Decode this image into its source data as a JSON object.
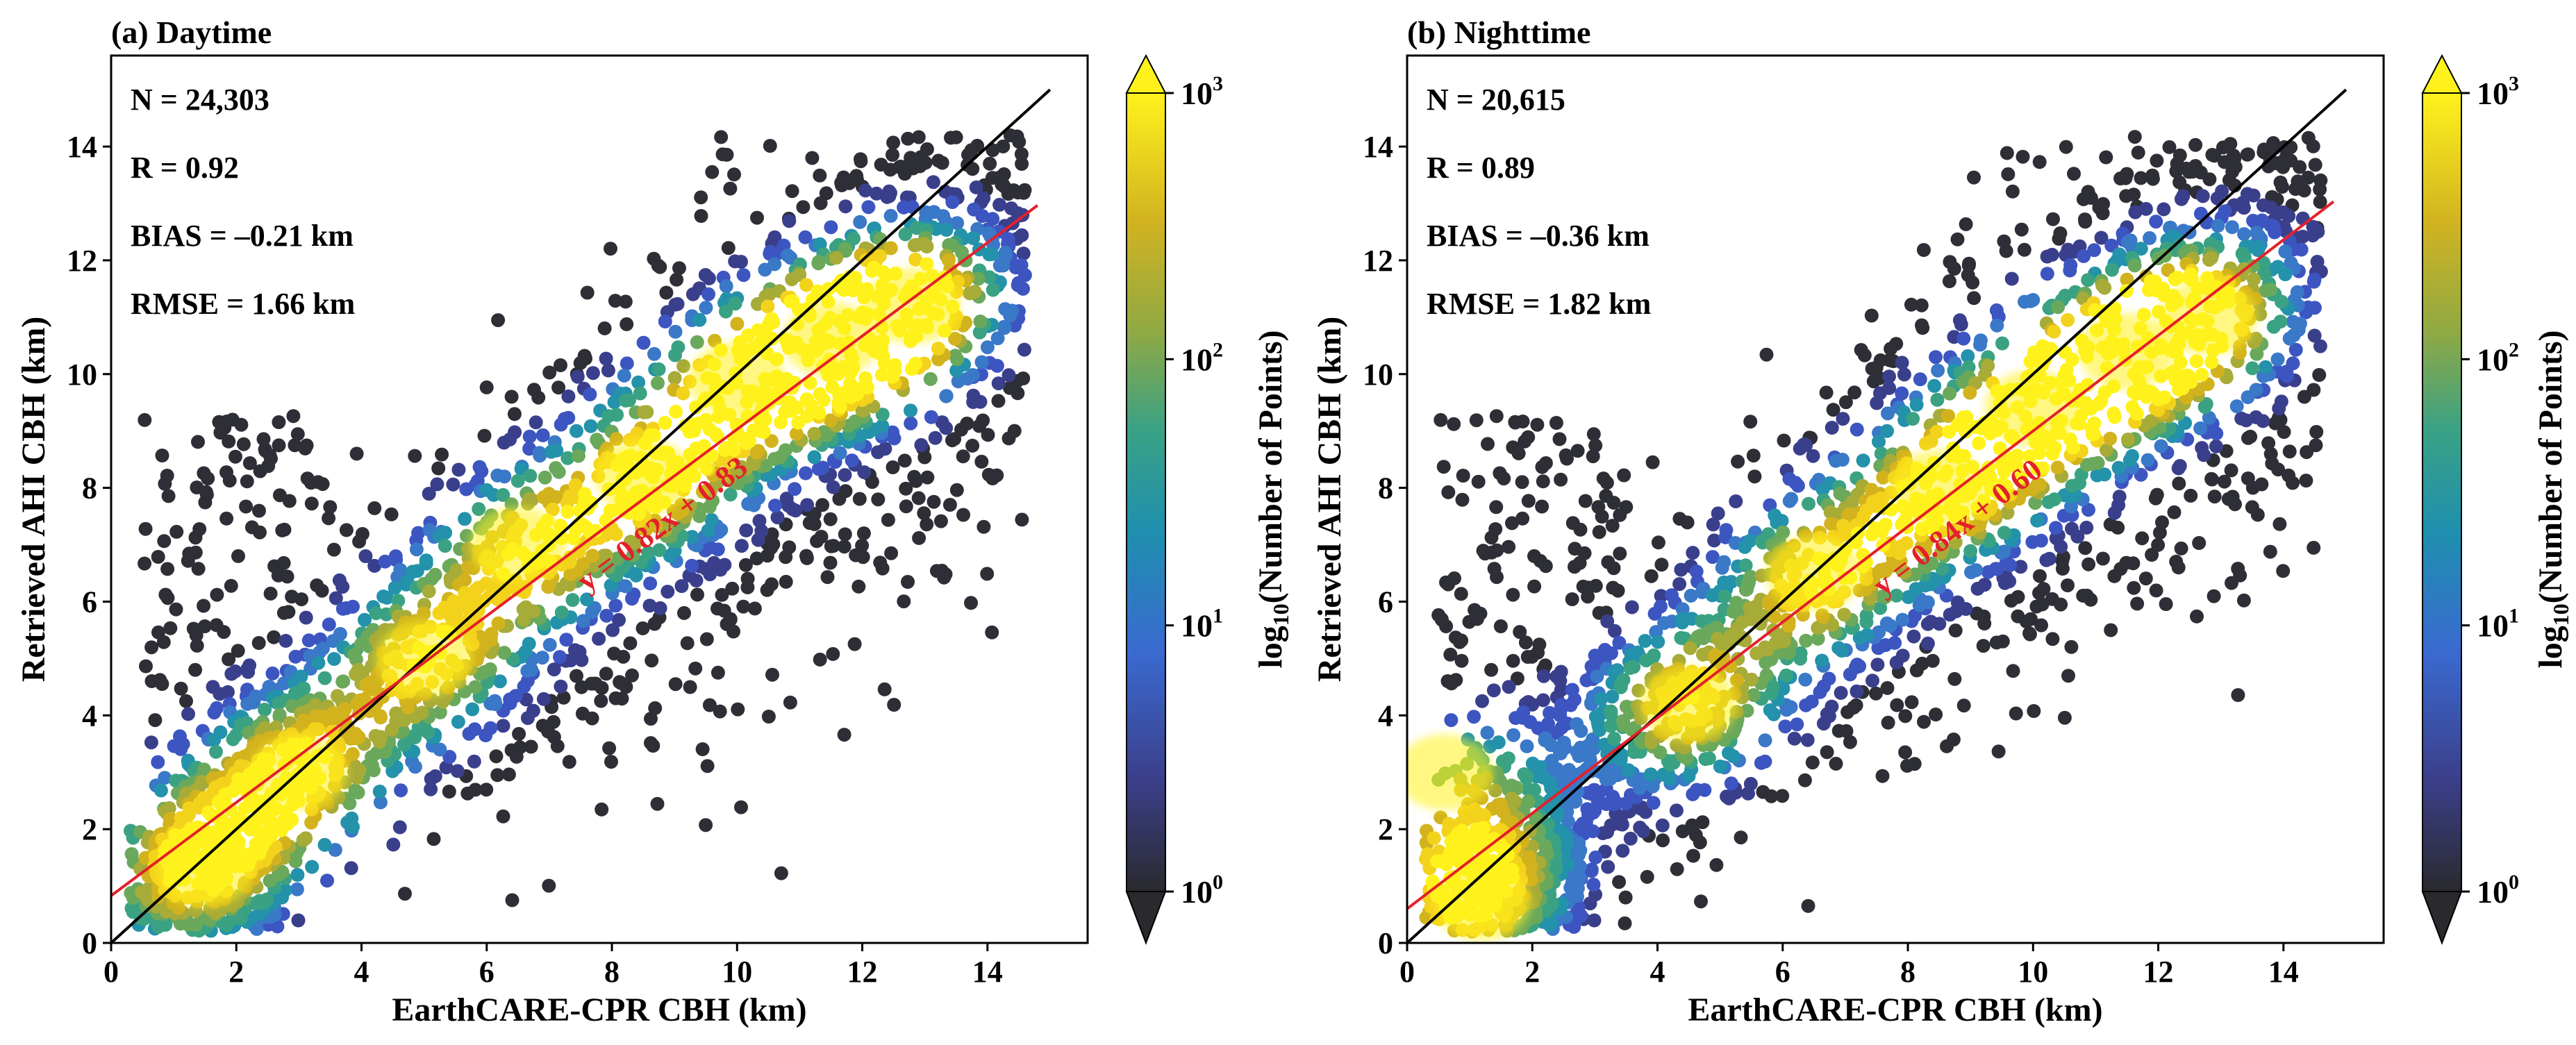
{
  "chart_data": [
    {
      "type": "scatter",
      "panel": "(a) Daytime",
      "title": "(a) Daytime",
      "xlabel": "EarthCARE-CPR CBH (km)",
      "ylabel": "Retrieved AHI CBH (km)",
      "xlim": [
        0,
        15.6
      ],
      "ylim": [
        0,
        15.6
      ],
      "xticks": [
        "0",
        "2",
        "4",
        "6",
        "8",
        "10",
        "12",
        "14"
      ],
      "yticks": [
        "0",
        "2",
        "4",
        "6",
        "8",
        "10",
        "12",
        "14"
      ],
      "stats": {
        "n": "N = 24,303",
        "r": "R = 0.92",
        "bias": "BIAS = –0.21 km",
        "rmse": "RMSE = 1.66 km"
      },
      "one_to_one": {
        "x": [
          0,
          15
        ],
        "y": [
          0,
          15
        ],
        "color": "#000000"
      },
      "fit": {
        "slope": 0.82,
        "intercept": 0.83,
        "x": [
          0,
          14.8
        ],
        "color": "#e4202a",
        "label": "y = 0.82x + 0.83"
      },
      "density_centers": [
        {
          "x": 1.5,
          "y": 1.3,
          "w": 1.0
        },
        {
          "x": 3.0,
          "y": 3.0,
          "w": 0.85
        },
        {
          "x": 5.0,
          "y": 5.0,
          "w": 0.8
        },
        {
          "x": 6.5,
          "y": 7.0,
          "w": 0.8
        },
        {
          "x": 8.5,
          "y": 8.2,
          "w": 0.85
        },
        {
          "x": 10.0,
          "y": 9.9,
          "w": 0.9
        },
        {
          "x": 11.5,
          "y": 10.6,
          "w": 1.0
        },
        {
          "x": 12.8,
          "y": 11.2,
          "w": 0.9
        }
      ],
      "colorbar": {
        "label_prefix": "log",
        "label_sub": "10",
        "label_rest": "(Number of Points)",
        "ticks": [
          {
            "base": "10",
            "exp": "0"
          },
          {
            "base": "10",
            "exp": "1"
          },
          {
            "base": "10",
            "exp": "2"
          },
          {
            "base": "10",
            "exp": "3"
          }
        ],
        "colors": [
          "#2a2a2e",
          "#3b4aa6",
          "#3a78c8",
          "#2196a8",
          "#4aa67c",
          "#9aaa40",
          "#d4b41e",
          "#fff21c"
        ]
      }
    },
    {
      "type": "scatter",
      "panel": "(b) Nighttime",
      "title": "(b) Nighttime",
      "xlabel": "EarthCARE-CPR CBH (km)",
      "ylabel": "Retrieved AHI CBH (km)",
      "xlim": [
        0,
        15.6
      ],
      "ylim": [
        0,
        15.6
      ],
      "xticks": [
        "0",
        "2",
        "4",
        "6",
        "8",
        "10",
        "12",
        "14"
      ],
      "yticks": [
        "0",
        "2",
        "4",
        "6",
        "8",
        "10",
        "12",
        "14"
      ],
      "stats": {
        "n": "N = 20,615",
        "r": "R = 0.89",
        "bias": "BIAS = –0.36 km",
        "rmse": "RMSE = 1.82 km"
      },
      "one_to_one": {
        "x": [
          0,
          15
        ],
        "y": [
          0,
          15
        ],
        "color": "#000000"
      },
      "fit": {
        "slope": 0.84,
        "intercept": 0.6,
        "x": [
          0,
          14.8
        ],
        "color": "#e4202a",
        "label": "y = 0.84x + 0.60"
      },
      "density_centers": [
        {
          "x": 1.2,
          "y": 0.7,
          "w": 1.0
        },
        {
          "x": 0.6,
          "y": 3.0,
          "w": 0.7
        },
        {
          "x": 4.5,
          "y": 4.2,
          "w": 0.85
        },
        {
          "x": 6.5,
          "y": 6.5,
          "w": 0.85
        },
        {
          "x": 8.5,
          "y": 8.0,
          "w": 0.85
        },
        {
          "x": 10.0,
          "y": 9.4,
          "w": 0.95
        },
        {
          "x": 11.5,
          "y": 10.4,
          "w": 0.95
        },
        {
          "x": 12.8,
          "y": 11.0,
          "w": 0.8
        }
      ],
      "colorbar": {
        "label_prefix": "log",
        "label_sub": "10",
        "label_rest": "(Number of Points)",
        "ticks": [
          {
            "base": "10",
            "exp": "0"
          },
          {
            "base": "10",
            "exp": "1"
          },
          {
            "base": "10",
            "exp": "2"
          },
          {
            "base": "10",
            "exp": "3"
          }
        ],
        "colors": [
          "#2a2a2e",
          "#3b4aa6",
          "#3a78c8",
          "#2196a8",
          "#4aa67c",
          "#9aaa40",
          "#d4b41e",
          "#fff21c"
        ]
      }
    }
  ]
}
